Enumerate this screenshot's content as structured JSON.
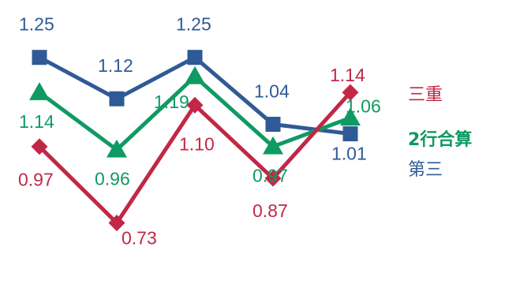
{
  "chart_data": {
    "type": "line",
    "categories": [
      "",
      "",
      "",
      "",
      ""
    ],
    "ylim": [
      0.6,
      1.35
    ],
    "grid": false,
    "legend_position": "right",
    "series": [
      {
        "name": "第三",
        "color": "#2f5a96",
        "marker": "square",
        "values": [
          1.25,
          1.12,
          1.25,
          1.04,
          1.01
        ],
        "labels": [
          "1.25",
          "1.12",
          "1.25",
          "1.04",
          "1.01"
        ]
      },
      {
        "name": "2行合算",
        "color": "#0f9a63",
        "marker": "triangle",
        "values": [
          1.14,
          0.96,
          1.19,
          0.97,
          1.06
        ],
        "labels": [
          "1.14",
          "0.96",
          "1.19",
          "0.97",
          "1.06"
        ]
      },
      {
        "name": "三重",
        "color": "#c22746",
        "marker": "diamond",
        "values": [
          0.97,
          0.73,
          1.1,
          0.87,
          1.14
        ],
        "labels": [
          "0.97",
          "0.73",
          "1.10",
          "0.87",
          "1.14"
        ]
      }
    ]
  }
}
